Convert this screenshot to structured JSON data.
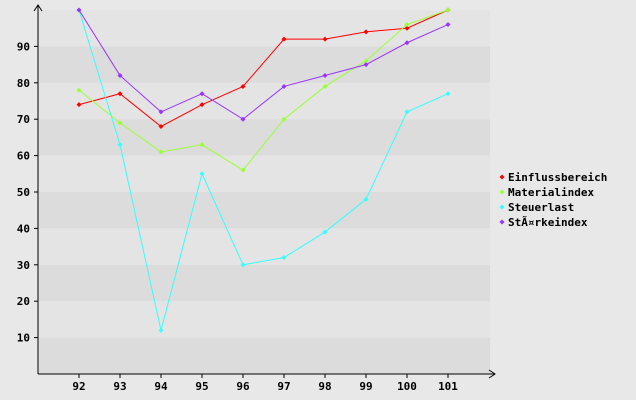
{
  "chart_data": {
    "type": "line",
    "x": [
      "92",
      "93",
      "94",
      "95",
      "96",
      "97",
      "98",
      "99",
      "100",
      "101"
    ],
    "ylim": [
      0,
      100
    ],
    "yticks": [
      10,
      20,
      30,
      40,
      50,
      60,
      70,
      80,
      90
    ],
    "grid": "horizontal bands",
    "legend_position": "right",
    "series": [
      {
        "name": "Einflussbereich",
        "color": "#ff0000",
        "values": [
          74,
          77,
          68,
          74,
          79,
          92,
          92,
          94,
          95,
          100
        ]
      },
      {
        "name": "Materialindex",
        "color": "#99ff33",
        "values": [
          78,
          69,
          61,
          63,
          56,
          70,
          79,
          86,
          96,
          100
        ]
      },
      {
        "name": "Steuerlast",
        "color": "#33ffff",
        "values": [
          100,
          63,
          12,
          55,
          30,
          32,
          39,
          48,
          72,
          77
        ]
      },
      {
        "name": "StÃ¤rkeindex",
        "color": "#9933ff",
        "values": [
          100,
          82,
          72,
          77,
          70,
          79,
          82,
          85,
          91,
          96
        ]
      }
    ]
  }
}
